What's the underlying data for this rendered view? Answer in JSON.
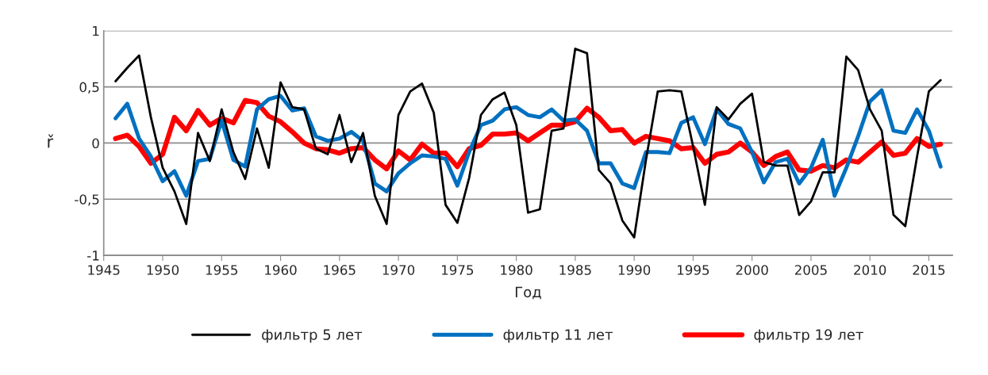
{
  "chart_data": {
    "type": "line",
    "xlabel": "Год",
    "ylabel": "ř",
    "x": [
      1946,
      1947,
      1948,
      1949,
      1950,
      1951,
      1952,
      1953,
      1954,
      1955,
      1956,
      1957,
      1958,
      1959,
      1960,
      1961,
      1962,
      1963,
      1964,
      1965,
      1966,
      1967,
      1968,
      1969,
      1970,
      1971,
      1972,
      1973,
      1974,
      1975,
      1976,
      1977,
      1978,
      1979,
      1980,
      1981,
      1982,
      1983,
      1984,
      1985,
      1986,
      1987,
      1988,
      1989,
      1990,
      1991,
      1992,
      1993,
      1994,
      1995,
      1996,
      1997,
      1998,
      1999,
      2000,
      2001,
      2002,
      2003,
      2004,
      2005,
      2006,
      2007,
      2008,
      2009,
      2010,
      2011,
      2012,
      2013,
      2014,
      2015,
      2016
    ],
    "series": [
      {
        "name": "фильтр 5 лет",
        "color": "#000000",
        "values": [
          0.55,
          0.67,
          0.78,
          0.23,
          -0.22,
          -0.43,
          -0.72,
          0.09,
          -0.16,
          0.3,
          -0.08,
          -0.32,
          0.13,
          -0.22,
          0.54,
          0.32,
          0.3,
          -0.05,
          -0.1,
          0.25,
          -0.17,
          0.09,
          -0.47,
          -0.72,
          0.25,
          0.46,
          0.53,
          0.27,
          -0.55,
          -0.71,
          -0.31,
          0.25,
          0.39,
          0.45,
          0.16,
          -0.62,
          -0.59,
          0.11,
          0.13,
          0.84,
          0.8,
          -0.24,
          -0.36,
          -0.69,
          -0.84,
          -0.15,
          0.46,
          0.47,
          0.46,
          -0.03,
          -0.55,
          0.32,
          0.21,
          0.35,
          0.44,
          -0.17,
          -0.2,
          -0.2,
          -0.64,
          -0.52,
          -0.26,
          -0.26,
          0.77,
          0.65,
          0.3,
          0.11,
          -0.64,
          -0.74,
          -0.12,
          0.46,
          0.56
        ]
      },
      {
        "name": "фильтр 11 лет",
        "color": "#0070c0",
        "values": [
          0.22,
          0.35,
          0.04,
          -0.12,
          -0.34,
          -0.25,
          -0.47,
          -0.16,
          -0.14,
          0.2,
          -0.15,
          -0.21,
          0.3,
          0.39,
          0.42,
          0.29,
          0.31,
          0.06,
          0.02,
          0.04,
          0.1,
          0.02,
          -0.36,
          -0.43,
          -0.27,
          -0.18,
          -0.11,
          -0.12,
          -0.14,
          -0.38,
          -0.08,
          0.16,
          0.2,
          0.3,
          0.32,
          0.25,
          0.23,
          0.3,
          0.2,
          0.21,
          0.11,
          -0.18,
          -0.18,
          -0.36,
          -0.4,
          -0.08,
          -0.08,
          -0.09,
          0.18,
          0.23,
          -0.01,
          0.3,
          0.17,
          0.13,
          -0.08,
          -0.35,
          -0.17,
          -0.14,
          -0.36,
          -0.22,
          0.03,
          -0.47,
          -0.22,
          0.06,
          0.37,
          0.47,
          0.11,
          0.09,
          0.3,
          0.11,
          -0.21
        ]
      },
      {
        "name": "фильтр 19 лет",
        "color": "#ff0000",
        "values": [
          0.04,
          0.07,
          -0.03,
          -0.18,
          -0.1,
          0.23,
          0.11,
          0.29,
          0.16,
          0.22,
          0.18,
          0.38,
          0.36,
          0.24,
          0.19,
          0.1,
          0.0,
          -0.05,
          -0.06,
          -0.09,
          -0.05,
          -0.04,
          -0.15,
          -0.23,
          -0.07,
          -0.15,
          -0.01,
          -0.09,
          -0.09,
          -0.21,
          -0.05,
          -0.02,
          0.08,
          0.08,
          0.09,
          0.02,
          0.09,
          0.16,
          0.16,
          0.19,
          0.31,
          0.23,
          0.11,
          0.12,
          0.0,
          0.06,
          0.04,
          0.02,
          -0.05,
          -0.04,
          -0.18,
          -0.1,
          -0.08,
          0.0,
          -0.08,
          -0.2,
          -0.12,
          -0.08,
          -0.24,
          -0.25,
          -0.2,
          -0.22,
          -0.15,
          -0.17,
          -0.08,
          0.01,
          -0.11,
          -0.09,
          0.04,
          -0.03,
          -0.01
        ]
      }
    ],
    "xlim": [
      1945,
      2017
    ],
    "xticks": [
      1945,
      1950,
      1955,
      1960,
      1965,
      1970,
      1975,
      1980,
      1985,
      1990,
      1995,
      2000,
      2005,
      2010,
      2015
    ],
    "ylim": [
      -1,
      1
    ],
    "yticks": [
      {
        "value": -1,
        "label": "-1"
      },
      {
        "value": -0.5,
        "label": "-0,5"
      },
      0,
      {
        "value": 0.5,
        "label": "0,5"
      },
      1
    ],
    "grid": "y",
    "legend": "bottom",
    "marker": "none",
    "line_style": "solid"
  }
}
